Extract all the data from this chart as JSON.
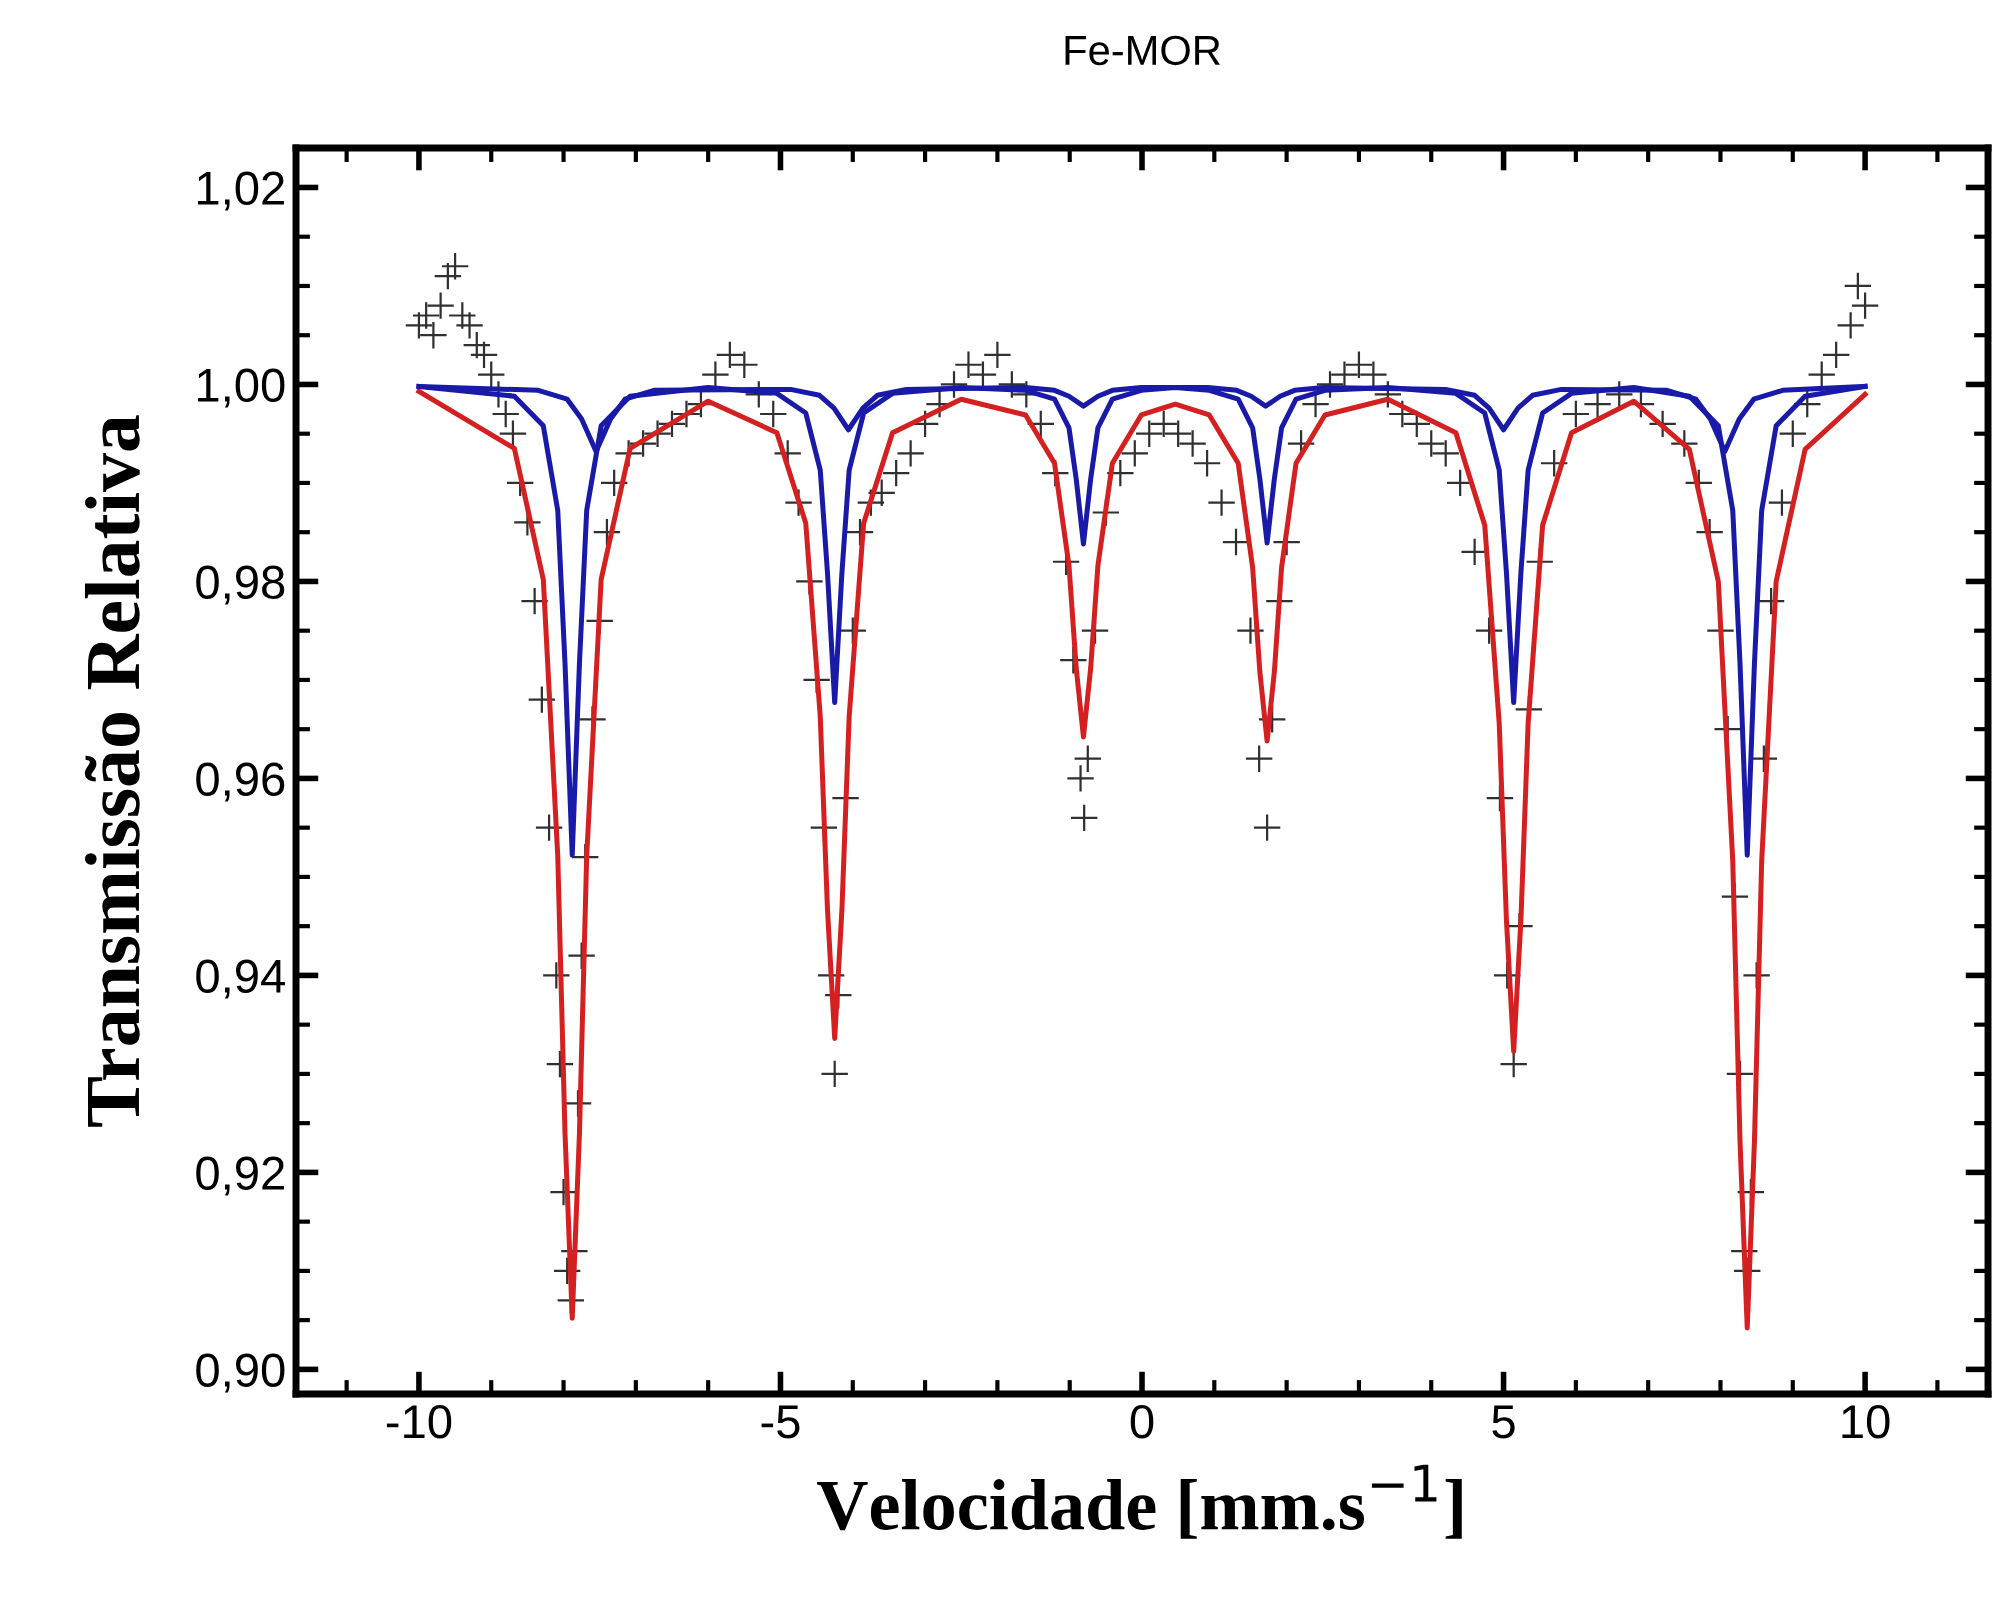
{
  "chart_data": {
    "type": "line",
    "title": "Fe-MOR",
    "xlabel": "Velocidade [mm.s$^{−1}$]",
    "ylabel": "Transmissão Relativa",
    "xlim": [
      -11.7,
      11.7
    ],
    "xticks": [
      -10,
      -5,
      0,
      5,
      10
    ],
    "ylim": [
      0.8975,
      1.024
    ],
    "yticks": [
      {
        "value": 0.9,
        "label": "0,90"
      },
      {
        "value": 0.92,
        "label": "0,92"
      },
      {
        "value": 0.94,
        "label": "0,94"
      },
      {
        "value": 0.96,
        "label": "0,96"
      },
      {
        "value": 0.98,
        "label": "0,98"
      },
      {
        "value": 1.0,
        "label": "1,00"
      },
      {
        "value": 1.02,
        "label": "1,02"
      }
    ],
    "grid": false,
    "legend": false,
    "series": [
      {
        "type": "scatter",
        "marker": "cross",
        "color": "#303030",
        "x": [
          -10.0,
          -9.9,
          -9.8,
          -9.7,
          -9.6,
          -9.5,
          -9.4,
          -9.3,
          -9.2,
          -9.1,
          -9.0,
          -8.9,
          -8.8,
          -8.7,
          -8.6,
          -8.5,
          -8.4,
          -8.3,
          -8.2,
          -8.1,
          -8.05,
          -8.0,
          -7.95,
          -7.9,
          -7.85,
          -7.8,
          -7.75,
          -7.7,
          -7.6,
          -7.5,
          -7.4,
          -7.3,
          -7.1,
          -6.9,
          -6.7,
          -6.5,
          -6.3,
          -6.1,
          -5.9,
          -5.7,
          -5.5,
          -5.3,
          -5.1,
          -4.9,
          -4.75,
          -4.6,
          -4.5,
          -4.4,
          -4.3,
          -4.25,
          -4.2,
          -4.1,
          -4.0,
          -3.9,
          -3.75,
          -3.6,
          -3.4,
          -3.2,
          -3.0,
          -2.8,
          -2.6,
          -2.4,
          -2.2,
          -2.0,
          -1.8,
          -1.6,
          -1.4,
          -1.2,
          -1.05,
          -0.95,
          -0.85,
          -0.8,
          -0.75,
          -0.65,
          -0.5,
          -0.3,
          -0.1,
          0.1,
          0.3,
          0.5,
          0.7,
          0.9,
          1.1,
          1.3,
          1.5,
          1.62,
          1.73,
          1.8,
          1.9,
          2.0,
          2.2,
          2.4,
          2.6,
          2.8,
          3.0,
          3.2,
          3.4,
          3.6,
          3.8,
          4.0,
          4.2,
          4.4,
          4.6,
          4.8,
          4.95,
          5.05,
          5.14,
          5.22,
          5.35,
          5.5,
          5.7,
          6.0,
          6.3,
          6.6,
          6.9,
          7.2,
          7.5,
          7.7,
          7.85,
          8.0,
          8.1,
          8.2,
          8.27,
          8.33,
          8.37,
          8.42,
          8.5,
          8.6,
          8.7,
          8.85,
          9.0,
          9.2,
          9.4,
          9.6,
          9.8,
          9.9,
          10.0
        ],
        "values": [
          1.006,
          1.007,
          1.005,
          1.008,
          1.011,
          1.012,
          1.007,
          1.006,
          1.004,
          1.003,
          1.001,
          0.999,
          0.997,
          0.995,
          0.99,
          0.986,
          0.978,
          0.968,
          0.955,
          0.94,
          0.931,
          0.918,
          0.91,
          0.907,
          0.912,
          0.927,
          0.942,
          0.952,
          0.966,
          0.976,
          0.985,
          0.99,
          0.993,
          0.994,
          0.995,
          0.996,
          0.997,
          0.998,
          1.001,
          1.003,
          1.002,
          0.999,
          0.997,
          0.993,
          0.988,
          0.98,
          0.97,
          0.955,
          0.94,
          0.93,
          0.938,
          0.958,
          0.975,
          0.985,
          0.988,
          0.989,
          0.991,
          0.993,
          0.996,
          0.998,
          1.0,
          1.002,
          1.001,
          1.003,
          1.0,
          0.999,
          0.996,
          0.991,
          0.982,
          0.972,
          0.96,
          0.956,
          0.962,
          0.975,
          0.987,
          0.991,
          0.993,
          0.995,
          0.996,
          0.995,
          0.994,
          0.992,
          0.988,
          0.984,
          0.975,
          0.962,
          0.955,
          0.966,
          0.978,
          0.984,
          0.994,
          0.998,
          1.0,
          1.001,
          1.002,
          1.001,
          0.999,
          0.997,
          0.996,
          0.994,
          0.993,
          0.99,
          0.983,
          0.975,
          0.958,
          0.94,
          0.931,
          0.945,
          0.967,
          0.982,
          0.992,
          0.997,
          0.998,
          0.999,
          0.998,
          0.996,
          0.994,
          0.99,
          0.985,
          0.975,
          0.965,
          0.948,
          0.93,
          0.912,
          0.91,
          0.918,
          0.94,
          0.962,
          0.978,
          0.988,
          0.995,
          0.998,
          1.001,
          1.003,
          1.006,
          1.01,
          1.008
        ]
      },
      {
        "color": "#d42020",
        "x": [
          -10,
          -8.68,
          -8.28,
          -8.08,
          -7.98,
          -7.88,
          -7.78,
          -7.68,
          -7.48,
          -7.08,
          -6.0,
          -5.05,
          -4.65,
          -4.45,
          -4.35,
          -4.25,
          -4.15,
          -4.05,
          -3.85,
          -3.45,
          -2.5,
          -1.61,
          -1.21,
          -1.01,
          -0.91,
          -0.81,
          -0.71,
          -0.61,
          -0.41,
          -0.01,
          0.46,
          0.93,
          1.33,
          1.53,
          1.63,
          1.73,
          1.83,
          1.93,
          2.13,
          2.53,
          3.4,
          4.34,
          4.74,
          4.94,
          5.04,
          5.14,
          5.24,
          5.34,
          5.54,
          5.94,
          6.8,
          7.57,
          7.97,
          8.17,
          8.27,
          8.37,
          8.47,
          8.57,
          8.77,
          9.17,
          10
        ],
        "values": [
          0.9993,
          0.9935,
          0.9802,
          0.9521,
          0.924,
          0.9052,
          0.924,
          0.9521,
          0.9802,
          0.9935,
          0.9983,
          0.9951,
          0.9859,
          0.9663,
          0.9467,
          0.9336,
          0.9467,
          0.9663,
          0.9859,
          0.9951,
          0.9985,
          0.9969,
          0.992,
          0.9816,
          0.9712,
          0.9642,
          0.9712,
          0.9816,
          0.992,
          0.9969,
          0.998,
          0.9969,
          0.992,
          0.9814,
          0.9708,
          0.9638,
          0.9708,
          0.9814,
          0.992,
          0.9969,
          0.9985,
          0.9951,
          0.9857,
          0.9656,
          0.9456,
          0.9323,
          0.9456,
          0.9656,
          0.9857,
          0.9951,
          0.9983,
          0.9934,
          0.98,
          0.9516,
          0.9232,
          0.9042,
          0.9232,
          0.9516,
          0.98,
          0.9934,
          0.999
        ]
      },
      {
        "color": "#1a1aa8",
        "x": [
          -10,
          -8.68,
          -8.28,
          -8.08,
          -7.98,
          -7.88,
          -7.78,
          -7.68,
          -7.48,
          -7.08,
          -6.0,
          -5.05,
          -4.65,
          -4.45,
          -4.35,
          -4.25,
          -4.15,
          -4.05,
          -3.85,
          -3.45,
          -2.5,
          -1.61,
          -1.21,
          -1.01,
          -0.91,
          -0.81,
          -0.71,
          -0.61,
          -0.41,
          -0.01,
          0.46,
          0.93,
          1.33,
          1.53,
          1.63,
          1.73,
          1.83,
          1.93,
          2.13,
          2.53,
          3.4,
          4.34,
          4.74,
          4.94,
          5.04,
          5.14,
          5.24,
          5.34,
          5.54,
          5.94,
          6.8,
          7.57,
          7.97,
          8.17,
          8.27,
          8.37,
          8.47,
          8.57,
          8.77,
          9.17,
          10
        ],
        "values": [
          0.9998,
          0.9988,
          0.9958,
          0.9872,
          0.9717,
          0.9522,
          0.9717,
          0.9872,
          0.9958,
          0.9988,
          0.9997,
          0.9991,
          0.9971,
          0.9913,
          0.9809,
          0.9677,
          0.9809,
          0.9913,
          0.9971,
          0.9991,
          0.9997,
          0.9994,
          0.9985,
          0.9956,
          0.9904,
          0.9838,
          0.9904,
          0.9956,
          0.9985,
          0.9994,
          0.9997,
          0.9994,
          0.9985,
          0.9956,
          0.9904,
          0.9839,
          0.9904,
          0.9956,
          0.9985,
          0.9994,
          0.9997,
          0.9991,
          0.9971,
          0.9913,
          0.9809,
          0.9677,
          0.9809,
          0.9913,
          0.9971,
          0.9991,
          0.9997,
          0.9988,
          0.9958,
          0.9872,
          0.9717,
          0.9522,
          0.9717,
          0.9872,
          0.9958,
          0.9988,
          0.9998
        ]
      },
      {
        "color": "#1a1aa8",
        "x": [
          -10,
          -8.35,
          -7.95,
          -7.75,
          -7.55,
          -7.35,
          -7.15,
          -6.75,
          -4.86,
          -4.46,
          -4.26,
          -4.06,
          -3.86,
          -3.66,
          -3.26,
          -1.61,
          -1.21,
          -1.01,
          -0.81,
          -0.61,
          -0.41,
          -0.01,
          0.91,
          1.31,
          1.51,
          1.71,
          1.91,
          2.11,
          2.51,
          4.2,
          4.6,
          4.8,
          5.0,
          5.2,
          5.4,
          5.8,
          7.26,
          7.66,
          7.86,
          8.06,
          8.26,
          8.46,
          8.86,
          10
        ],
        "values": [
          0.9998,
          0.9994,
          0.9985,
          0.9965,
          0.9932,
          0.9965,
          0.9985,
          0.9994,
          0.9995,
          0.9989,
          0.9976,
          0.9954,
          0.9976,
          0.9989,
          0.9995,
          0.9997,
          0.9994,
          0.9988,
          0.9978,
          0.9988,
          0.9994,
          0.9997,
          0.9997,
          0.9994,
          0.9988,
          0.9978,
          0.9988,
          0.9994,
          0.9997,
          0.9995,
          0.9989,
          0.9976,
          0.9954,
          0.9976,
          0.9989,
          0.9995,
          0.9994,
          0.9985,
          0.9965,
          0.9932,
          0.9965,
          0.9985,
          0.9994,
          0.9998
        ]
      }
    ]
  }
}
